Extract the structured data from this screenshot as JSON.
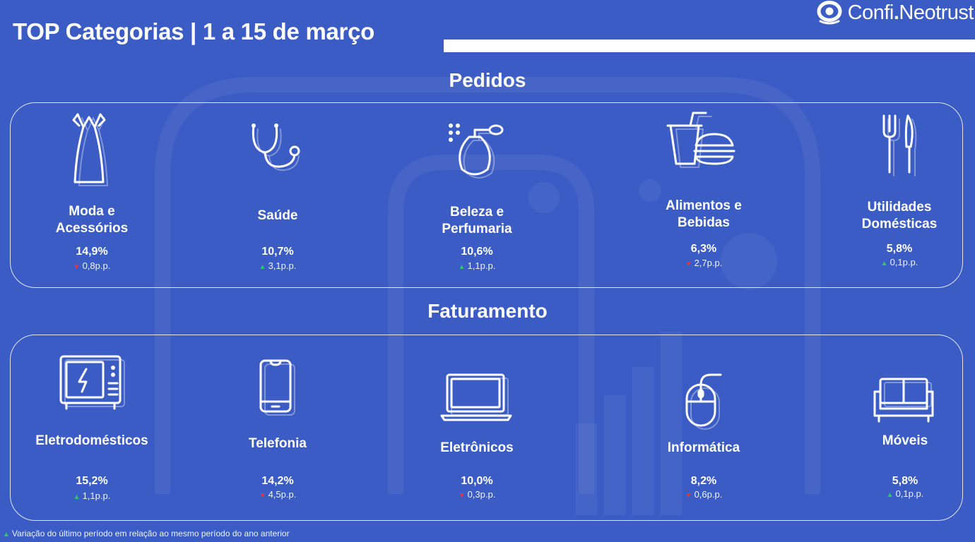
{
  "header": {
    "title": "TOP Categorias | 1 a 15 de março",
    "logo_brand": "Confi",
    "logo_dot": ".",
    "logo_partner": "Neotrust"
  },
  "sections": {
    "pedidos": {
      "title": "Pedidos",
      "items": [
        {
          "label_line1": "Moda e",
          "label_line2": "Acessórios",
          "value": "14,9%",
          "delta": "0,8p.p.",
          "trend": "down",
          "icon": "dress-icon"
        },
        {
          "label_line1": "Saúde",
          "label_line2": "",
          "value": "10,7%",
          "delta": "3,1p.p.",
          "trend": "up",
          "icon": "stethoscope-icon"
        },
        {
          "label_line1": "Beleza e",
          "label_line2": "Perfumaria",
          "value": "10,6%",
          "delta": "1,1p.p.",
          "trend": "up",
          "icon": "perfume-icon"
        },
        {
          "label_line1": "Alimentos e",
          "label_line2": "Bebidas",
          "value": "6,3%",
          "delta": "2,7p.p.",
          "trend": "down",
          "icon": "food-drink-icon"
        },
        {
          "label_line1": "Utilidades",
          "label_line2": "Domésticas",
          "value": "5,8%",
          "delta": "0,1p.p.",
          "trend": "up",
          "icon": "cutlery-icon"
        }
      ]
    },
    "faturamento": {
      "title": "Faturamento",
      "items": [
        {
          "label_line1": "Eletrodomésticos",
          "label_line2": "",
          "value": "15,2%",
          "delta": "1,1p.p.",
          "trend": "up",
          "icon": "microwave-icon"
        },
        {
          "label_line1": "Telefonia",
          "label_line2": "",
          "value": "14,2%",
          "delta": "4,5p.p.",
          "trend": "down",
          "icon": "smartphone-icon"
        },
        {
          "label_line1": "Eletrônicos",
          "label_line2": "",
          "value": "10,0%",
          "delta": "0,3p.p.",
          "trend": "down",
          "icon": "laptop-icon"
        },
        {
          "label_line1": "Informática",
          "label_line2": "",
          "value": "8,2%",
          "delta": "0,6p.p.",
          "trend": "down",
          "icon": "mouse-icon"
        },
        {
          "label_line1": "Móveis",
          "label_line2": "",
          "value": "5,8%",
          "delta": "0,1p.p.",
          "trend": "up",
          "icon": "sofa-icon"
        }
      ]
    }
  },
  "footnote": "Variação do último período em relação ao mesmo período do ano anterior",
  "colors": {
    "background": "#3b5cc4",
    "up": "#31c46a",
    "down": "#e8343a"
  }
}
